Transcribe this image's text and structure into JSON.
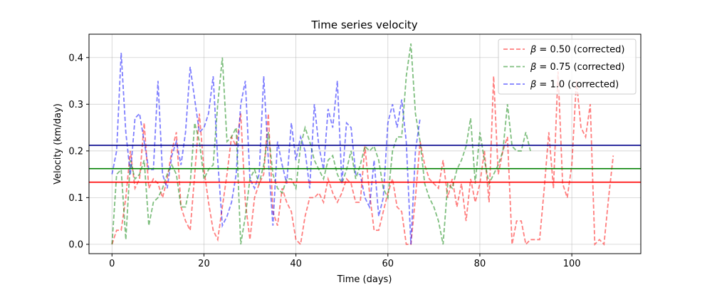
{
  "chart_data": {
    "type": "line",
    "title": "Time series velocity",
    "xlabel": "Time (days)",
    "ylabel": "Velocity (km/day)",
    "xlim": [
      -5,
      115
    ],
    "ylim": [
      -0.02,
      0.45
    ],
    "xticks": [
      0,
      20,
      40,
      60,
      80,
      100
    ],
    "yticks": [
      0.0,
      0.1,
      0.2,
      0.3,
      0.4
    ],
    "xtick_labels": [
      "0",
      "20",
      "40",
      "60",
      "80",
      "100"
    ],
    "ytick_labels": [
      "0.0",
      "0.1",
      "0.2",
      "0.3",
      "0.4"
    ],
    "grid": true,
    "legend_position": "top-right",
    "series": [
      {
        "name": "β = 0.50 (corrected)",
        "name_prefix": "β",
        "name_suffix": " = 0.50 (corrected)",
        "color": "#ff0000",
        "style": "dashed",
        "alpha": 0.5,
        "x": [
          0,
          1,
          2,
          3,
          4,
          5,
          6,
          7,
          8,
          9,
          10,
          11,
          12,
          13,
          14,
          15,
          16,
          17,
          18,
          19,
          20,
          21,
          22,
          23,
          24,
          25,
          26,
          27,
          28,
          29,
          30,
          31,
          32,
          33,
          34,
          35,
          36,
          37,
          38,
          39,
          40,
          41,
          42,
          43,
          44,
          45,
          46,
          47,
          48,
          49,
          50,
          51,
          52,
          53,
          54,
          55,
          56,
          57,
          58,
          59,
          60,
          61,
          62,
          63,
          64,
          65,
          66,
          67,
          68,
          69,
          70,
          71,
          72,
          73,
          74,
          75,
          76,
          77,
          78,
          79,
          80,
          81,
          82,
          83,
          84,
          85,
          86,
          87,
          88,
          89,
          90,
          91,
          92,
          93,
          94,
          95,
          96,
          97,
          98,
          99,
          100,
          101,
          102,
          103,
          104,
          105,
          106,
          107,
          108,
          109
        ],
        "y": [
          0.0,
          0.03,
          0.03,
          0.1,
          0.2,
          0.12,
          0.14,
          0.26,
          0.12,
          0.14,
          0.13,
          0.1,
          0.14,
          0.2,
          0.24,
          0.08,
          0.05,
          0.03,
          0.15,
          0.28,
          0.16,
          0.09,
          0.03,
          0.01,
          0.08,
          0.15,
          0.23,
          0.21,
          0.28,
          0.09,
          0.01,
          0.1,
          0.13,
          0.15,
          0.28,
          0.07,
          0.04,
          0.12,
          0.09,
          0.07,
          0.01,
          0.0,
          0.06,
          0.1,
          0.1,
          0.11,
          0.09,
          0.14,
          0.11,
          0.09,
          0.11,
          0.14,
          0.13,
          0.09,
          0.09,
          0.21,
          0.11,
          0.03,
          0.03,
          0.07,
          0.11,
          0.14,
          0.08,
          0.07,
          0.0,
          0.0,
          0.1,
          0.22,
          0.17,
          0.14,
          0.13,
          0.12,
          0.18,
          0.1,
          0.14,
          0.08,
          0.13,
          0.05,
          0.14,
          0.09,
          0.13,
          0.2,
          0.09,
          0.36,
          0.15,
          0.2,
          0.23,
          0.0,
          0.05,
          0.05,
          0.0,
          0.01,
          0.01,
          0.01,
          0.12,
          0.24,
          0.12,
          0.37,
          0.13,
          0.1,
          0.17,
          0.35,
          0.25,
          0.23,
          0.3,
          0.0,
          0.01,
          0.0,
          0.1,
          0.19
        ]
      },
      {
        "name": "β = 0.75 (corrected)",
        "name_prefix": "β",
        "name_suffix": " = 0.75 (corrected)",
        "color": "#008000",
        "style": "dashed",
        "alpha": 0.5,
        "x": [
          0,
          1,
          2,
          3,
          4,
          5,
          6,
          7,
          8,
          9,
          10,
          11,
          12,
          13,
          14,
          15,
          16,
          17,
          18,
          19,
          20,
          21,
          22,
          23,
          24,
          25,
          26,
          27,
          28,
          29,
          30,
          31,
          32,
          33,
          34,
          35,
          36,
          37,
          38,
          39,
          40,
          41,
          42,
          43,
          44,
          45,
          46,
          47,
          48,
          49,
          50,
          51,
          52,
          53,
          54,
          55,
          56,
          57,
          58,
          59,
          60,
          61,
          62,
          63,
          64,
          65,
          66,
          67,
          68,
          69,
          70,
          71,
          72,
          73,
          74,
          75,
          76,
          77,
          78,
          79,
          80,
          81,
          82,
          83,
          84,
          85,
          86,
          87,
          88,
          89,
          90,
          91
        ],
        "y": [
          0.0,
          0.15,
          0.16,
          0.01,
          0.18,
          0.14,
          0.15,
          0.18,
          0.04,
          0.09,
          0.1,
          0.12,
          0.15,
          0.17,
          0.15,
          0.08,
          0.08,
          0.13,
          0.26,
          0.22,
          0.14,
          0.16,
          0.17,
          0.3,
          0.4,
          0.22,
          0.23,
          0.25,
          0.0,
          0.06,
          0.14,
          0.16,
          0.13,
          0.17,
          0.24,
          0.15,
          0.12,
          0.11,
          0.14,
          0.14,
          0.12,
          0.21,
          0.25,
          0.22,
          0.18,
          0.16,
          0.14,
          0.18,
          0.19,
          0.15,
          0.13,
          0.16,
          0.2,
          0.14,
          0.17,
          0.21,
          0.2,
          0.21,
          0.18,
          0.12,
          0.1,
          0.2,
          0.23,
          0.23,
          0.36,
          0.43,
          0.28,
          0.22,
          0.13,
          0.1,
          0.08,
          0.05,
          0.0,
          0.13,
          0.12,
          0.16,
          0.18,
          0.21,
          0.27,
          0.13,
          0.24,
          0.18,
          0.13,
          0.15,
          0.17,
          0.2,
          0.3,
          0.21,
          0.2,
          0.2,
          0.24,
          0.2
        ]
      },
      {
        "name": "β = 1.0 (corrected)",
        "name_prefix": "β",
        "name_suffix": " = 1.0 (corrected)",
        "color": "#0000ff",
        "style": "dashed",
        "alpha": 0.5,
        "x": [
          0,
          1,
          2,
          3,
          4,
          5,
          6,
          7,
          8,
          9,
          10,
          11,
          12,
          13,
          14,
          15,
          16,
          17,
          18,
          19,
          20,
          21,
          22,
          23,
          24,
          25,
          26,
          27,
          28,
          29,
          30,
          31,
          32,
          33,
          34,
          35,
          36,
          37,
          38,
          39,
          40,
          41,
          42,
          43,
          44,
          45,
          46,
          47,
          48,
          49,
          50,
          51,
          52,
          53,
          54,
          55,
          56,
          57,
          58,
          59,
          60,
          61,
          62,
          63,
          64,
          65,
          66,
          67
        ],
        "y": [
          0.15,
          0.2,
          0.41,
          0.24,
          0.15,
          0.27,
          0.28,
          0.22,
          0.16,
          0.16,
          0.35,
          0.15,
          0.12,
          0.19,
          0.22,
          0.17,
          0.24,
          0.38,
          0.31,
          0.24,
          0.25,
          0.28,
          0.36,
          0.18,
          0.04,
          0.06,
          0.09,
          0.15,
          0.3,
          0.35,
          0.14,
          0.12,
          0.15,
          0.36,
          0.18,
          0.04,
          0.22,
          0.17,
          0.13,
          0.26,
          0.18,
          0.23,
          0.2,
          0.12,
          0.3,
          0.21,
          0.16,
          0.29,
          0.25,
          0.35,
          0.13,
          0.26,
          0.25,
          0.15,
          0.15,
          0.1,
          0.08,
          0.18,
          0.06,
          0.1,
          0.26,
          0.3,
          0.25,
          0.31,
          0.22,
          0.0,
          0.2,
          0.27
        ]
      }
    ],
    "hlines": [
      {
        "y": 0.212,
        "color": "#00008b"
      },
      {
        "y": 0.162,
        "color": "#008000"
      },
      {
        "y": 0.133,
        "color": "#ff0000"
      }
    ]
  }
}
